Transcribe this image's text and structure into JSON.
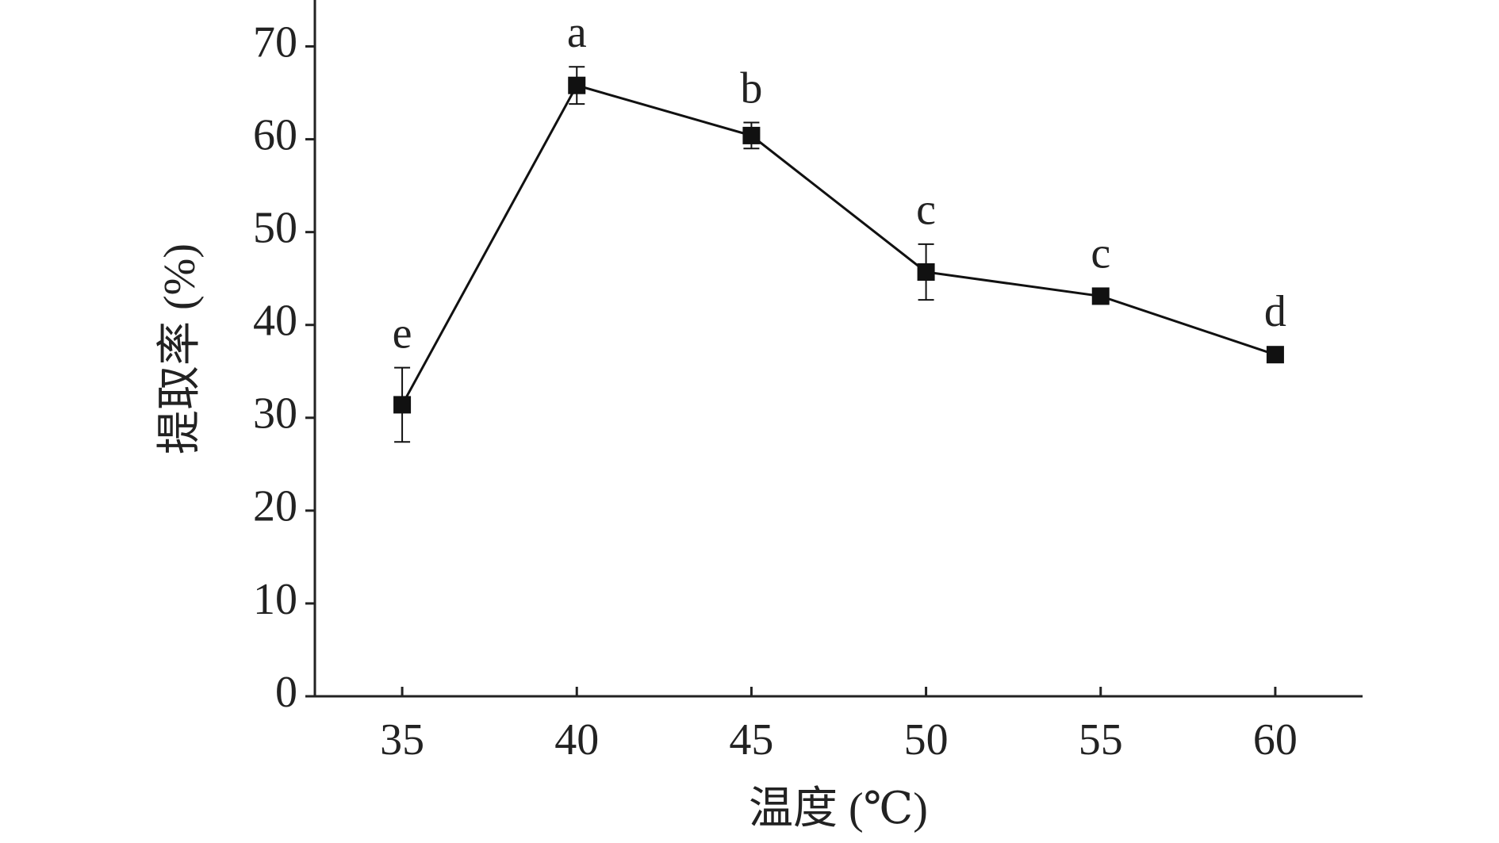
{
  "chart_data": {
    "type": "line",
    "x_label": "温度 (℃)",
    "y_label": "提取率 (%)",
    "x": [
      35,
      40,
      45,
      50,
      55,
      60
    ],
    "series": [
      {
        "color": "#111111",
        "values": [
          31.4,
          65.8,
          60.4,
          45.7,
          43.1,
          36.8
        ],
        "errors": [
          4.0,
          2.0,
          1.4,
          3.0,
          0.5,
          0.3
        ],
        "annotations": [
          "e",
          "a",
          "b",
          "c",
          "c",
          "d"
        ]
      }
    ],
    "xlim": [
      32.5,
      62.5
    ],
    "xticks": [
      35,
      40,
      45,
      50,
      55,
      60
    ],
    "ylim": [
      0,
      75
    ],
    "yticks": [
      0,
      10,
      20,
      30,
      40,
      50,
      60,
      70
    ]
  }
}
